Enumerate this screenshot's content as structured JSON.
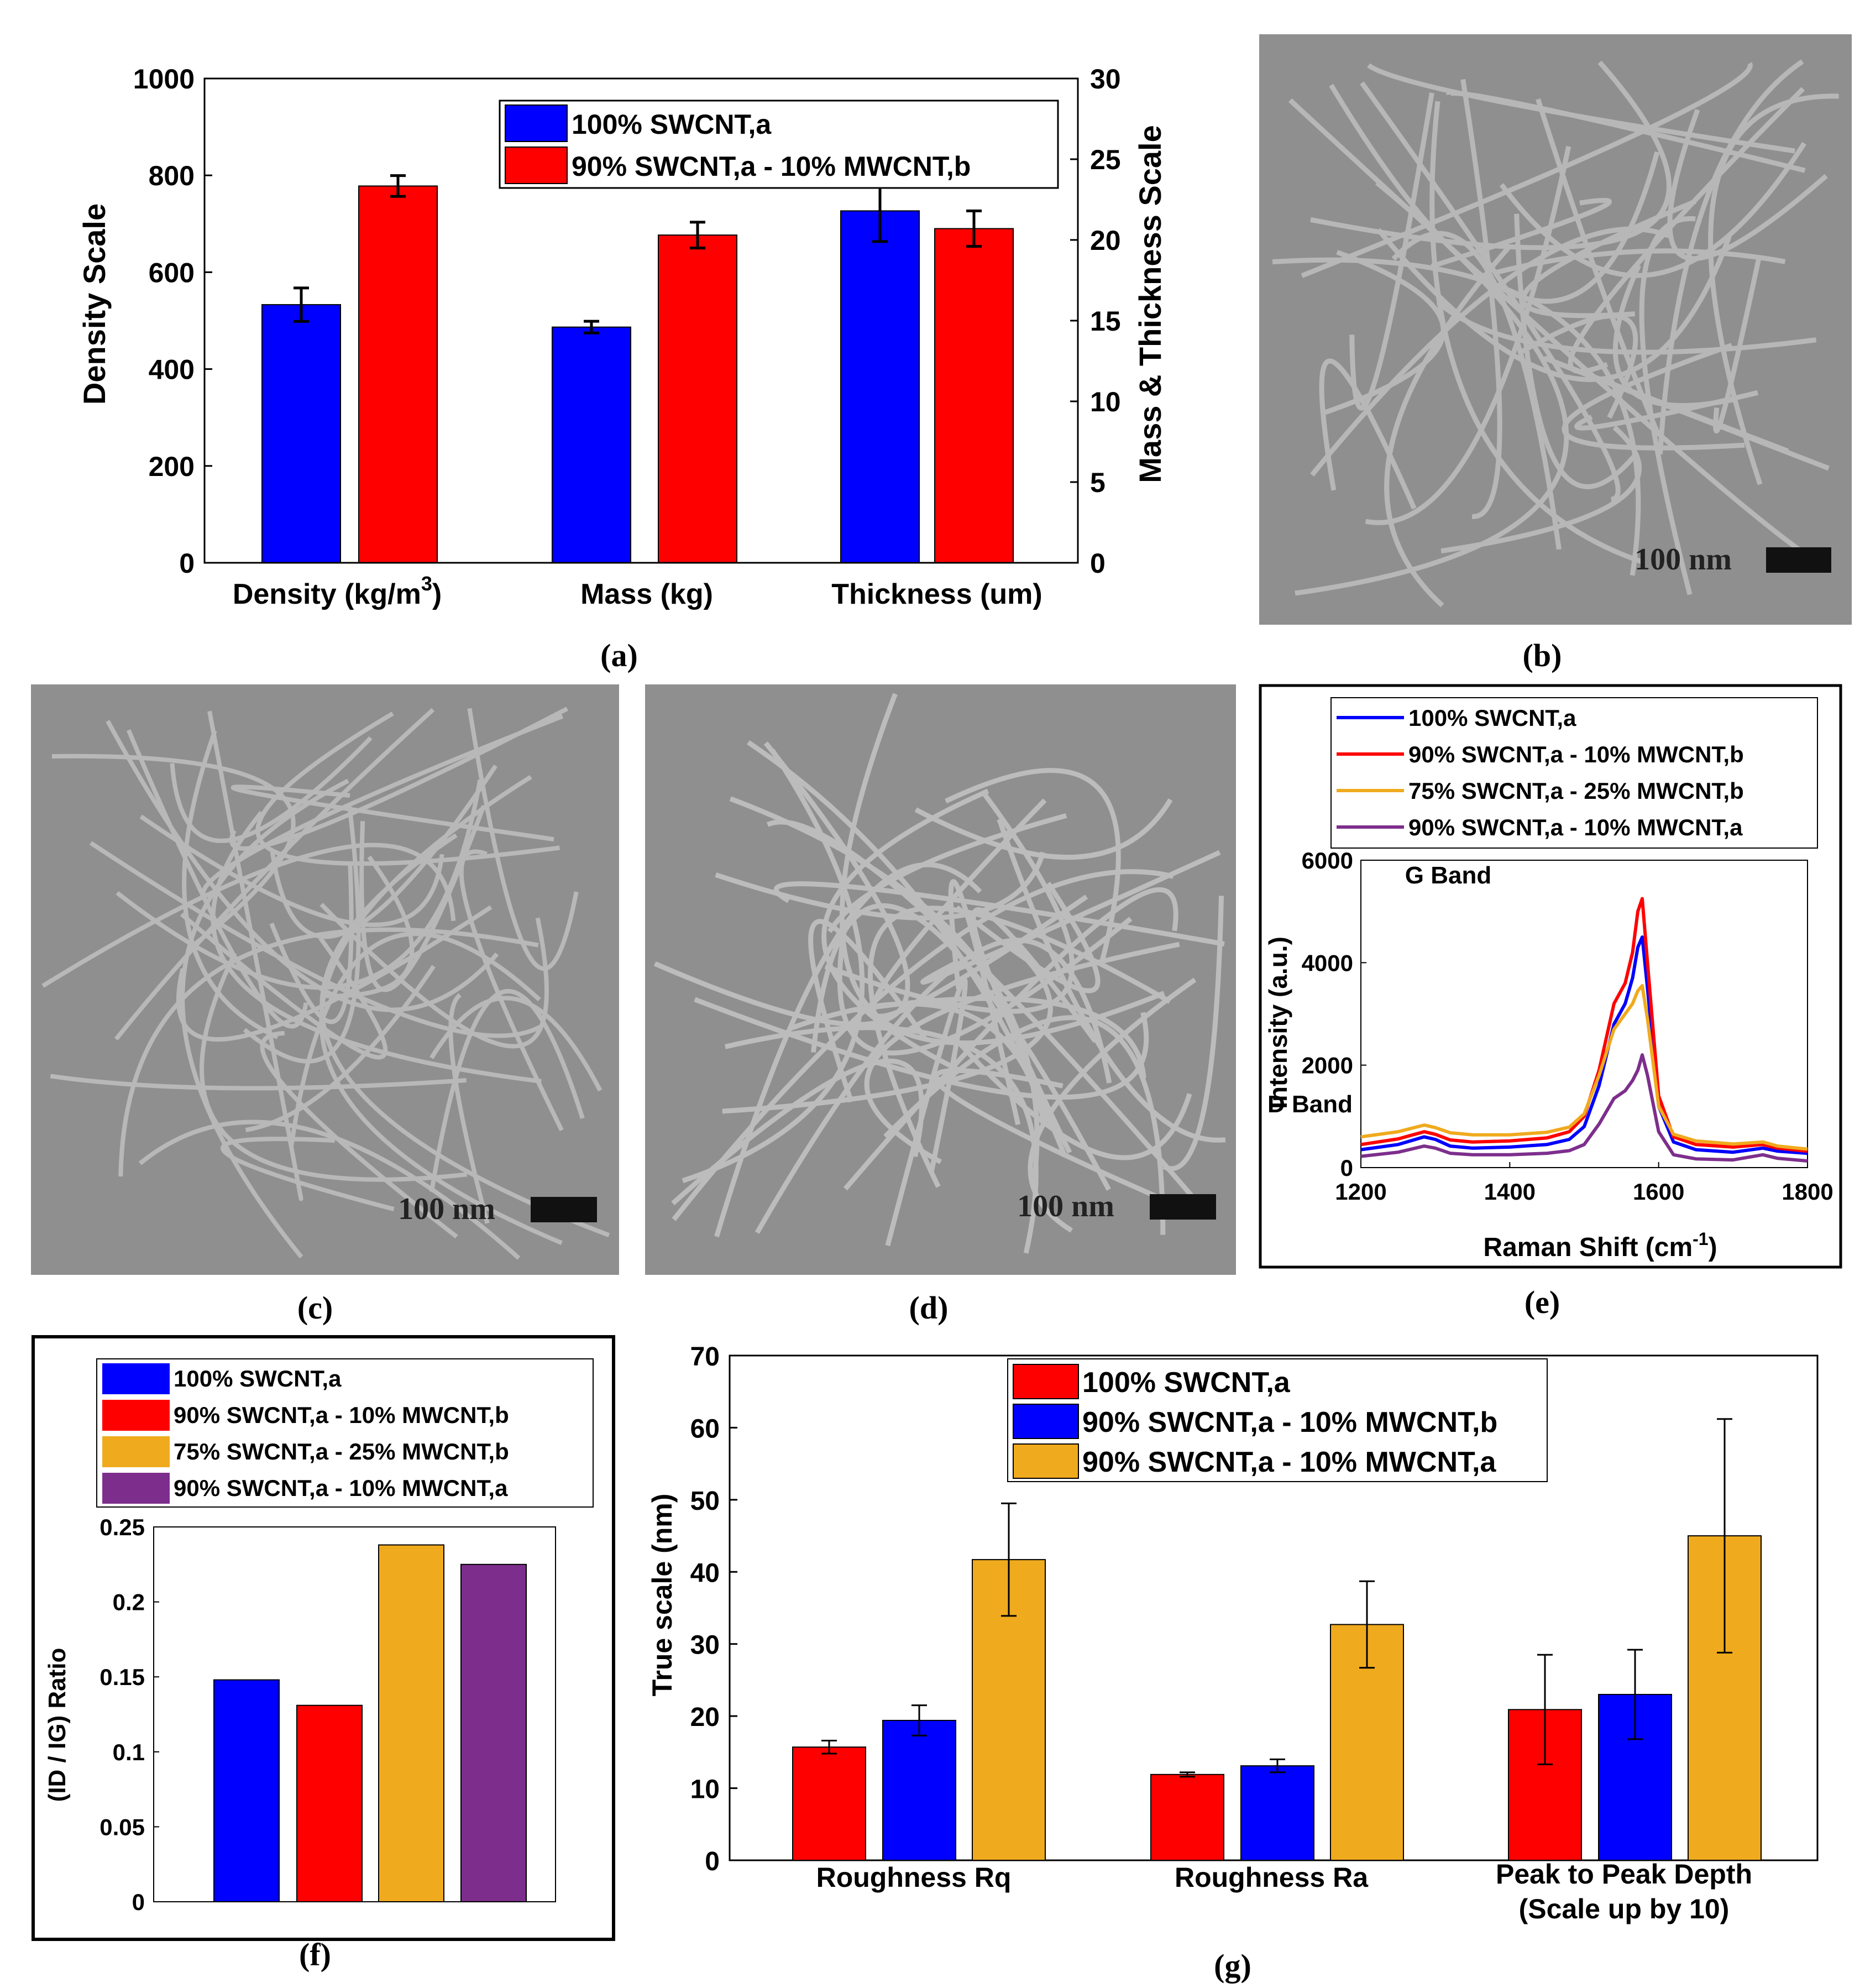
{
  "panel_labels": [
    "(a)",
    "(b)",
    "(c)",
    "(d)",
    "(e)",
    "(f)",
    "(g)"
  ],
  "scale_bar_label": "100 nm",
  "chart_data": [
    {
      "panel": "(a)",
      "type": "bar",
      "categories": [
        "Density (kg/m",
        "Mass (kg)",
        "Thickness (um)"
      ],
      "density_superscript": "3",
      "density_close": ")",
      "series": [
        {
          "name": "100% SWCNT,a",
          "color": "#0000ff",
          "values_left_axis": [
            533,
            null,
            null
          ],
          "values_right_axis": [
            null,
            14.6,
            21.8
          ],
          "errors": [
            34.5,
            0.36,
            1.9
          ]
        },
        {
          "name": "90% SWCNT,a - 10% MWCNT,b",
          "color": "#ff0000",
          "values_left_axis": [
            778,
            null,
            null
          ],
          "values_right_axis": [
            null,
            20.3,
            20.7
          ],
          "errors": [
            21.5,
            0.8,
            1.1
          ]
        }
      ],
      "ylabel": "Density Scale",
      "ylabel_right": "Mass & Thickness Scale",
      "ylim": [
        0,
        1000
      ],
      "ylim_right": [
        0,
        30
      ],
      "yticks": [
        "0",
        "200",
        "400",
        "600",
        "800",
        "1000"
      ],
      "yticks_right": [
        "0",
        "5",
        "10",
        "15",
        "20",
        "25",
        "30"
      ],
      "legend_position": "top-right"
    },
    {
      "panel": "(e)",
      "type": "line",
      "xlabel": "Raman Shift (cm",
      "xlabel_sup": "-1",
      "xlabel_close": ")",
      "ylabel": "Intensity (a.u.)",
      "xlim": [
        1200,
        1800
      ],
      "ylim": [
        0,
        6000
      ],
      "xticks": [
        "1200",
        "1400",
        "1600",
        "1800"
      ],
      "yticks": [
        "0",
        "2000",
        "4000",
        "6000"
      ],
      "annotations": [
        "D Band",
        "G Band"
      ],
      "x": [
        1200,
        1250,
        1285,
        1300,
        1320,
        1350,
        1400,
        1450,
        1480,
        1500,
        1520,
        1540,
        1555,
        1565,
        1572,
        1578,
        1585,
        1600,
        1620,
        1650,
        1700,
        1740,
        1760,
        1800
      ],
      "series": [
        {
          "name": "100% SWCNT,a",
          "color": "#0000ff",
          "y": [
            350,
            450,
            600,
            550,
            420,
            380,
            400,
            450,
            550,
            800,
            1600,
            2800,
            3200,
            3700,
            4300,
            4500,
            3500,
            1200,
            500,
            350,
            300,
            380,
            320,
            280
          ]
        },
        {
          "name": "90% SWCNT,a - 10% MWCNT,b",
          "color": "#ff0000",
          "y": [
            450,
            560,
            700,
            650,
            540,
            500,
            520,
            580,
            700,
            1000,
            1900,
            3200,
            3600,
            4200,
            5000,
            5250,
            4000,
            1400,
            600,
            450,
            400,
            450,
            380,
            320
          ]
        },
        {
          "name": "75% SWCNT,a - 25% MWCNT,b",
          "color": "#f0aa1e",
          "y": [
            600,
            700,
            830,
            780,
            680,
            640,
            640,
            690,
            790,
            1050,
            1800,
            2700,
            3000,
            3200,
            3450,
            3550,
            2900,
            1200,
            650,
            520,
            460,
            500,
            420,
            360
          ]
        },
        {
          "name": "90% SWCNT,a - 10% MWCNT,a",
          "color": "#7d2e8c",
          "y": [
            220,
            300,
            420,
            380,
            280,
            250,
            250,
            280,
            330,
            450,
            850,
            1350,
            1500,
            1700,
            1900,
            2200,
            1800,
            700,
            250,
            170,
            150,
            250,
            180,
            130
          ]
        }
      ],
      "legend_position": "top"
    },
    {
      "panel": "(f)",
      "type": "bar",
      "ylabel": "(ID / IG) Ratio",
      "ylim": [
        0,
        0.25
      ],
      "yticks": [
        "0",
        "0.05",
        "0.1",
        "0.15",
        "0.2",
        "0.25"
      ],
      "series": [
        {
          "name": "100% SWCNT,a",
          "color": "#0000ff",
          "value": 0.148
        },
        {
          "name": "90% SWCNT,a - 10% MWCNT,b",
          "color": "#ff0000",
          "value": 0.131
        },
        {
          "name": "75% SWCNT,a - 25% MWCNT,b",
          "color": "#f0aa1e",
          "value": 0.238
        },
        {
          "name": "90% SWCNT,a - 10% MWCNT,a",
          "color": "#7d2e8c",
          "value": 0.225
        }
      ],
      "legend_position": "top"
    },
    {
      "panel": "(g)",
      "type": "bar",
      "categories": [
        "Roughness Rq",
        "Roughness Ra",
        "Peak to Peak Depth"
      ],
      "category_sublabel": "(Scale up by 10)",
      "ylabel": "True scale (nm)",
      "ylim": [
        0,
        70
      ],
      "yticks": [
        "0",
        "10",
        "20",
        "30",
        "40",
        "50",
        "60",
        "70"
      ],
      "series": [
        {
          "name": "100% SWCNT,a",
          "color": "#ff0000",
          "values": [
            15.7,
            11.9,
            20.9
          ],
          "errors": [
            0.9,
            0.3,
            7.6
          ]
        },
        {
          "name": "90% SWCNT,a - 10% MWCNT,b",
          "color": "#0000ff",
          "values": [
            19.4,
            13.1,
            23.0
          ],
          "errors": [
            2.1,
            0.9,
            6.2
          ]
        },
        {
          "name": "90% SWCNT,a - 10% MWCNT,a",
          "color": "#f0aa1e",
          "values": [
            41.7,
            32.7,
            45.0
          ],
          "errors": [
            7.8,
            6.0,
            16.2
          ]
        }
      ],
      "legend_position": "top-center"
    }
  ]
}
